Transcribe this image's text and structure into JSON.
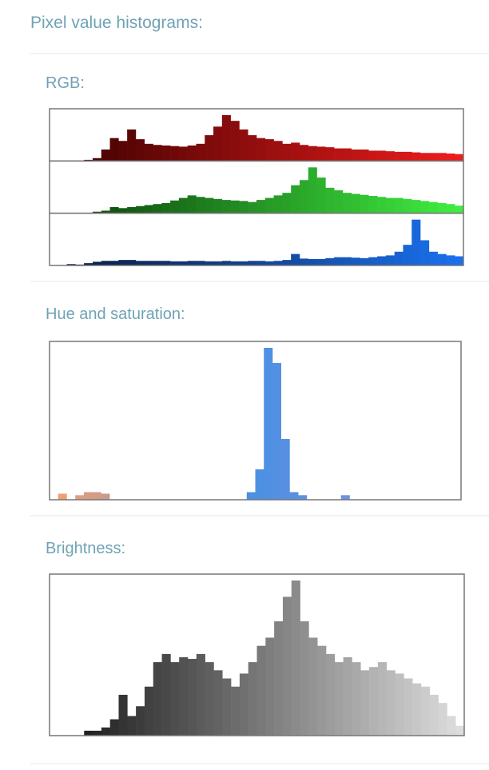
{
  "title": "Pixel value histograms:",
  "sections": [
    {
      "title": "RGB:",
      "histograms": [
        {
          "colors": [
            "#3a0000",
            "#ee1c1c"
          ],
          "values": [
            0,
            0,
            0,
            0,
            2,
            5,
            20,
            40,
            35,
            55,
            38,
            30,
            28,
            27,
            26,
            25,
            27,
            30,
            45,
            60,
            80,
            70,
            55,
            45,
            40,
            38,
            35,
            30,
            32,
            28,
            26,
            25,
            24,
            22,
            22,
            20,
            20,
            18,
            18,
            17,
            16,
            16,
            15,
            14,
            14,
            14,
            13,
            12
          ]
        },
        {
          "colors": [
            "#0a3a0a",
            "#40ee40"
          ],
          "values": [
            0,
            0,
            0,
            0,
            0,
            3,
            5,
            12,
            10,
            12,
            14,
            16,
            18,
            20,
            25,
            30,
            35,
            32,
            30,
            28,
            26,
            25,
            24,
            22,
            26,
            30,
            35,
            40,
            55,
            65,
            90,
            70,
            50,
            45,
            40,
            38,
            36,
            34,
            32,
            30,
            30,
            28,
            26,
            24,
            22,
            20,
            18,
            15
          ]
        },
        {
          "colors": [
            "#0a1a3a",
            "#1a70ee"
          ],
          "values": [
            0,
            0,
            3,
            2,
            5,
            8,
            10,
            10,
            12,
            12,
            10,
            10,
            10,
            10,
            9,
            9,
            10,
            10,
            9,
            9,
            10,
            9,
            9,
            10,
            10,
            9,
            10,
            12,
            25,
            15,
            14,
            14,
            16,
            18,
            18,
            17,
            16,
            18,
            20,
            22,
            30,
            45,
            100,
            55,
            30,
            25,
            22,
            20
          ]
        }
      ]
    },
    {
      "title": "Hue and saturation:",
      "histograms": [
        {
          "colors": [
            "#f4a070",
            "#4a90e2",
            "#a090e0"
          ],
          "values": [
            0,
            4,
            0,
            3,
            5,
            5,
            4,
            0,
            0,
            0,
            0,
            0,
            0,
            0,
            0,
            0,
            0,
            0,
            0,
            0,
            0,
            0,
            0,
            5,
            20,
            100,
            90,
            40,
            5,
            3,
            0,
            0,
            0,
            0,
            3,
            0,
            0,
            0,
            0,
            0,
            0,
            0,
            0,
            0,
            0,
            0,
            0,
            0
          ]
        }
      ]
    },
    {
      "title": "Brightness:",
      "histograms": [
        {
          "colors": [
            "#111111",
            "#dddddd"
          ],
          "values": [
            0,
            0,
            0,
            0,
            3,
            3,
            5,
            10,
            25,
            12,
            18,
            30,
            45,
            50,
            45,
            48,
            47,
            50,
            45,
            40,
            35,
            30,
            38,
            45,
            55,
            60,
            70,
            85,
            95,
            70,
            60,
            55,
            50,
            45,
            48,
            45,
            40,
            42,
            45,
            40,
            38,
            35,
            32,
            30,
            25,
            20,
            12,
            6
          ]
        }
      ]
    }
  ]
}
